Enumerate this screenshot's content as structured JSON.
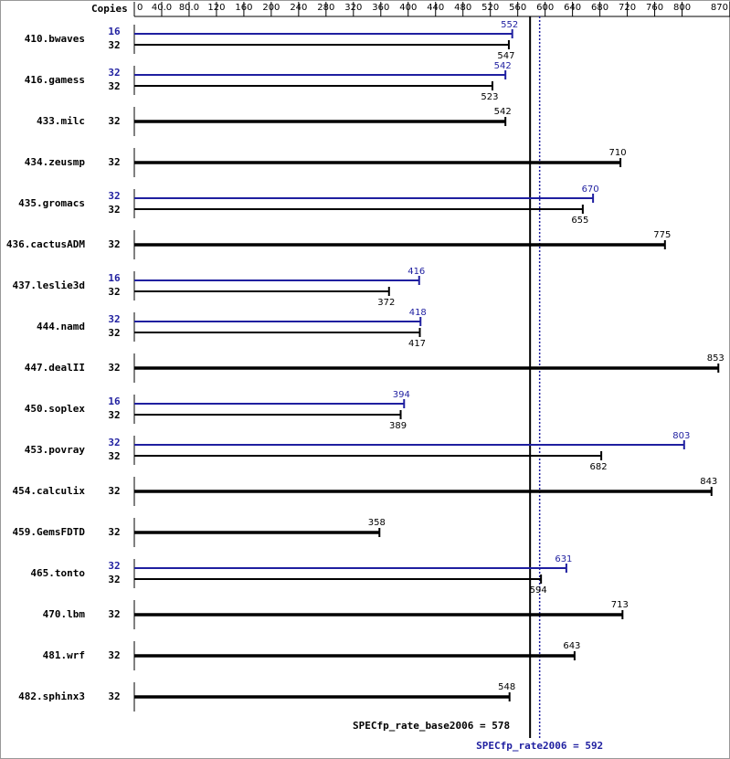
{
  "chart_data": {
    "type": "bar",
    "orientation": "horizontal",
    "copies_header": "Copies",
    "categories": [
      "410.bwaves",
      "416.gamess",
      "433.milc",
      "434.zeusmp",
      "435.gromacs",
      "436.cactusADM",
      "437.leslie3d",
      "444.namd",
      "447.dealII",
      "450.soplex",
      "453.povray",
      "454.calculix",
      "459.GemsFDTD",
      "465.tonto",
      "470.lbm",
      "481.wrf",
      "482.sphinx3"
    ],
    "series": [
      {
        "color": "#1f1fa0",
        "copies": [
          16,
          32,
          null,
          null,
          32,
          null,
          16,
          32,
          null,
          16,
          32,
          null,
          null,
          32,
          null,
          null,
          null
        ],
        "values": [
          552,
          542,
          null,
          null,
          670,
          null,
          416,
          418,
          null,
          394,
          803,
          null,
          null,
          631,
          null,
          null,
          null
        ]
      },
      {
        "color": "#000000",
        "copies": [
          32,
          32,
          32,
          32,
          32,
          32,
          32,
          32,
          32,
          32,
          32,
          32,
          32,
          32,
          32,
          32,
          32
        ],
        "values": [
          547,
          523,
          542,
          710,
          655,
          775,
          372,
          417,
          853,
          389,
          682,
          843,
          358,
          594,
          713,
          643,
          548
        ]
      }
    ],
    "xlim": [
      0,
      870
    ],
    "xticks": [
      0,
      {
        "value": 40,
        "label": "40.0"
      },
      {
        "value": 80,
        "label": "80.0"
      },
      120,
      160,
      200,
      240,
      280,
      320,
      360,
      400,
      440,
      480,
      520,
      560,
      600,
      640,
      680,
      720,
      760,
      800,
      870
    ],
    "reference_lines": [
      {
        "value": 578,
        "label": "SPECfp_rate_base2006 = 578",
        "color": "#000000",
        "style": "solid"
      },
      {
        "value": 592,
        "label": "SPECfp_rate2006 = 592",
        "color": "#1f1fa0",
        "style": "dotted"
      }
    ]
  }
}
